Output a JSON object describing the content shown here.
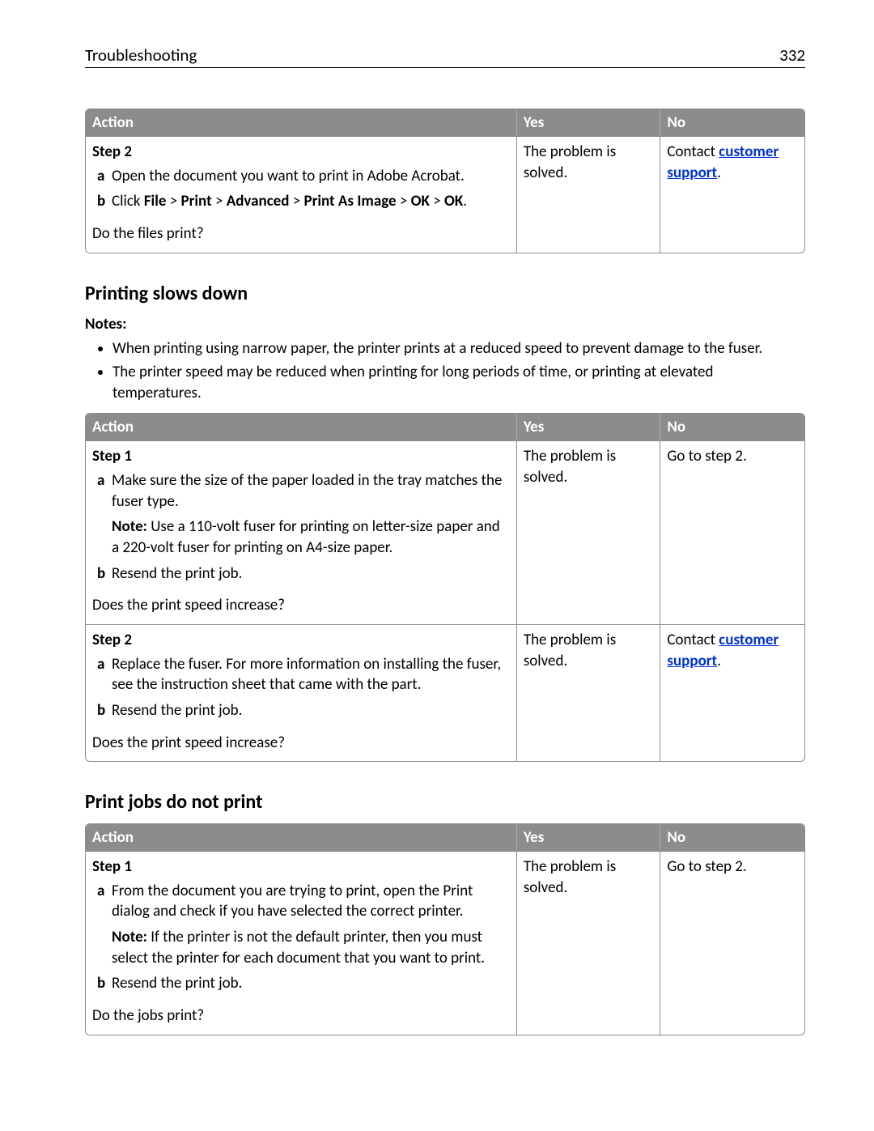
{
  "header": {
    "title": "Troubleshooting",
    "page_number": "332"
  },
  "colors": {
    "table_header_bg": "#8c8c8c",
    "table_header_text": "#ffffff",
    "border": "#8c8c8c",
    "link": "#0033cc",
    "body_text": "#000000"
  },
  "table1": {
    "headers": {
      "action": "Action",
      "yes": "Yes",
      "no": "No"
    },
    "row": {
      "step_label": "Step 2",
      "items": {
        "a": "Open the document you want to print in Adobe Acrobat.",
        "b_prefix": "Click ",
        "b_crumbs": [
          "File",
          "Print",
          "Advanced",
          "Print As Image",
          "OK",
          "OK"
        ],
        "b_suffix": "."
      },
      "question": "Do the files print?",
      "yes": "The problem is solved.",
      "no_prefix": "Contact ",
      "no_link": "customer support",
      "no_suffix": "."
    }
  },
  "section1": {
    "heading": "Printing slows down",
    "notes_label": "Notes:",
    "notes": [
      "When printing using narrow paper, the printer prints at a reduced speed to prevent damage to the fuser.",
      "The printer speed may be reduced when printing for long periods of time, or printing at elevated temperatures."
    ],
    "headers": {
      "action": "Action",
      "yes": "Yes",
      "no": "No"
    },
    "rows": [
      {
        "step_label": "Step 1",
        "items": {
          "a": "Make sure the size of the paper loaded in the tray matches the fuser type.",
          "note_lead": "Note:",
          "note": " Use a 110-volt fuser for printing on letter-size paper and a 220-volt fuser for printing on A4-size paper.",
          "b": "Resend the print job."
        },
        "question": "Does the print speed increase?",
        "yes": "The problem is solved.",
        "no": "Go to step 2."
      },
      {
        "step_label": "Step 2",
        "items": {
          "a": "Replace the fuser. For more information on installing the fuser, see the instruction sheet that came with the part.",
          "b": "Resend the print job."
        },
        "question": "Does the print speed increase?",
        "yes": "The problem is solved.",
        "no_prefix": "Contact ",
        "no_link": "customer support",
        "no_suffix": "."
      }
    ]
  },
  "section2": {
    "heading": "Print jobs do not print",
    "headers": {
      "action": "Action",
      "yes": "Yes",
      "no": "No"
    },
    "row": {
      "step_label": "Step 1",
      "items": {
        "a": "From the document you are trying to print, open the Print dialog and check if you have selected the correct printer.",
        "note_lead": "Note:",
        "note": " If the printer is not the default printer, then you must select the printer for each document that you want to print.",
        "b": "Resend the print job."
      },
      "question": "Do the jobs print?",
      "yes": "The problem is solved.",
      "no": "Go to step 2."
    }
  }
}
